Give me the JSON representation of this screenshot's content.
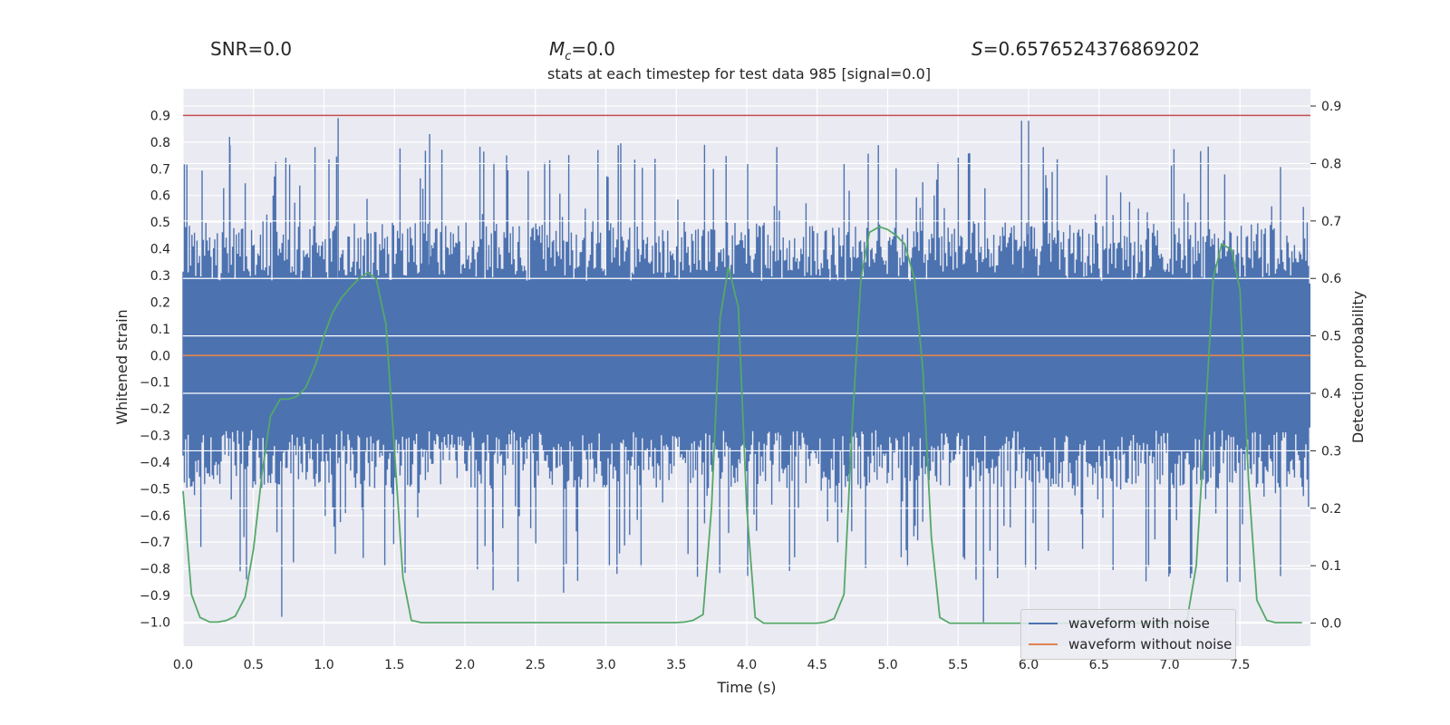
{
  "header": {
    "snr": "SNR=0.0",
    "mc_symbol": "M",
    "mc_sub": "c",
    "mc_value": "=0.0",
    "s_symbol": "S",
    "s_value": "=0.6576524376869202"
  },
  "chart_data": {
    "type": "line",
    "title": "stats at each timestep for test data 985 [signal=0.0]",
    "xlabel": "Time (s)",
    "ylabel": "Whitened strain",
    "y2label": "Detection probability",
    "xlim": [
      0.0,
      8.0
    ],
    "ylim": [
      -1.09,
      1.0
    ],
    "y2lim": [
      -0.04,
      0.93
    ],
    "xticks": [
      "0.0",
      "0.5",
      "1.0",
      "1.5",
      "2.0",
      "2.5",
      "3.0",
      "3.5",
      "4.0",
      "4.5",
      "5.0",
      "5.5",
      "6.0",
      "6.5",
      "7.0",
      "7.5"
    ],
    "yticks": [
      "0.9",
      "0.8",
      "0.7",
      "0.6",
      "0.5",
      "0.4",
      "0.3",
      "0.2",
      "0.1",
      "0.0",
      "−0.1",
      "−0.2",
      "−0.3",
      "−0.4",
      "−0.5",
      "−0.6",
      "−0.7",
      "−0.8",
      "−0.9",
      "−1.0"
    ],
    "y2ticks": [
      "0.9",
      "0.8",
      "0.7",
      "0.6",
      "0.5",
      "0.4",
      "0.3",
      "0.2",
      "0.1",
      "0.0"
    ],
    "threshold": 0.9,
    "colors": {
      "noise": "#4c72b0",
      "clean": "#dd8452",
      "prob": "#55a868",
      "threshold": "#c44e52",
      "plot_bg": "#eaeaf2",
      "grid": "#ffffff"
    },
    "series": [
      {
        "name": "waveform with noise",
        "description_type": "noise-band",
        "sample_rate_hz": 2048,
        "envelope_upper": 0.45,
        "envelope_lower": -0.45,
        "max": 0.89,
        "min": -1.0
      },
      {
        "name": "waveform without noise",
        "x": [
          0.0,
          8.0
        ],
        "y": [
          0.0,
          0.0
        ]
      },
      {
        "name": "detection probability",
        "axis": "right",
        "x": [
          0.0,
          0.06,
          0.12,
          0.19,
          0.25,
          0.31,
          0.37,
          0.44,
          0.5,
          0.56,
          0.62,
          0.69,
          0.75,
          0.81,
          0.87,
          0.94,
          1.0,
          1.06,
          1.12,
          1.19,
          1.25,
          1.31,
          1.37,
          1.44,
          1.5,
          1.56,
          1.62,
          1.69,
          1.75,
          1.81,
          3.5,
          3.56,
          3.62,
          3.69,
          3.75,
          3.81,
          3.87,
          3.94,
          4.0,
          4.06,
          4.12,
          4.19,
          4.25,
          4.31,
          4.5,
          4.56,
          4.62,
          4.69,
          4.75,
          4.81,
          4.87,
          4.94,
          5.0,
          5.06,
          5.12,
          5.19,
          5.25,
          5.31,
          5.37,
          5.44,
          5.5,
          5.56,
          7.0,
          7.06,
          7.12,
          7.19,
          7.25,
          7.31,
          7.37,
          7.44,
          7.5,
          7.56,
          7.62,
          7.69,
          7.75,
          7.81,
          7.94
        ],
        "y": [
          0.23,
          0.05,
          0.01,
          0.002,
          0.002,
          0.005,
          0.012,
          0.045,
          0.13,
          0.26,
          0.36,
          0.39,
          0.39,
          0.395,
          0.41,
          0.45,
          0.5,
          0.54,
          0.565,
          0.585,
          0.6,
          0.61,
          0.6,
          0.52,
          0.3,
          0.08,
          0.005,
          0.001,
          0.001,
          0.001,
          0.001,
          0.002,
          0.005,
          0.015,
          0.2,
          0.53,
          0.62,
          0.55,
          0.2,
          0.01,
          0.0,
          0.0,
          0.0,
          0.0,
          0.0,
          0.002,
          0.008,
          0.05,
          0.35,
          0.6,
          0.68,
          0.69,
          0.685,
          0.675,
          0.66,
          0.6,
          0.44,
          0.15,
          0.01,
          0.0,
          0.0,
          0.0,
          0.0,
          0.0,
          0.0,
          0.1,
          0.34,
          0.6,
          0.66,
          0.65,
          0.58,
          0.25,
          0.04,
          0.005,
          0.001,
          0.001,
          0.001
        ]
      }
    ],
    "legend": [
      {
        "name": "waveform with noise"
      },
      {
        "name": "waveform without noise"
      }
    ],
    "legend_position": "lower-right",
    "grid": true
  }
}
